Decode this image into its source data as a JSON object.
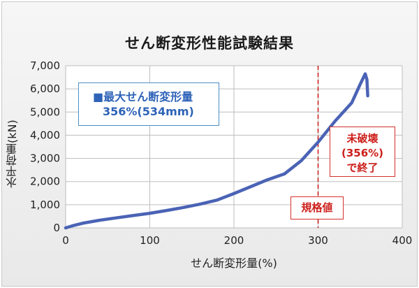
{
  "chart_data": {
    "type": "line",
    "title": "せん断変形性能試験結果",
    "xlabel": "せん断変形量(%)",
    "ylabel": "水平荷重(kN)",
    "xlim": [
      0,
      400
    ],
    "ylim": [
      0,
      7000
    ],
    "x_ticks": [
      "0",
      "100",
      "200",
      "300",
      "400"
    ],
    "y_ticks": [
      "0",
      "1,000",
      "2,000",
      "3,000",
      "4,000",
      "5,000",
      "6,000",
      "7,000"
    ],
    "x_tick_values": [
      0,
      100,
      200,
      300,
      400
    ],
    "y_tick_values": [
      0,
      1000,
      2000,
      3000,
      4000,
      5000,
      6000,
      7000
    ],
    "grid": true,
    "series": [
      {
        "color": "#4a63b5",
        "points": [
          [
            0,
            0
          ],
          [
            10,
            110
          ],
          [
            20,
            200
          ],
          [
            40,
            330
          ],
          [
            60,
            430
          ],
          [
            80,
            530
          ],
          [
            100,
            630
          ],
          [
            120,
            750
          ],
          [
            140,
            880
          ],
          [
            160,
            1030
          ],
          [
            180,
            1200
          ],
          [
            200,
            1480
          ],
          [
            220,
            1780
          ],
          [
            240,
            2080
          ],
          [
            260,
            2330
          ],
          [
            280,
            2900
          ],
          [
            300,
            3700
          ],
          [
            320,
            4600
          ],
          [
            340,
            5400
          ],
          [
            350,
            6200
          ],
          [
            356,
            6650
          ],
          [
            358,
            6400
          ],
          [
            359,
            5700
          ]
        ]
      }
    ],
    "reference_line": {
      "x": 300,
      "color": "#cc2222",
      "label": "規格値"
    },
    "annotations": {
      "max_label": "■最大せん断変形量",
      "max_value": "356%(534mm)",
      "unbroken_lines": [
        "未破壊",
        "(356%)",
        "で終了"
      ]
    }
  }
}
